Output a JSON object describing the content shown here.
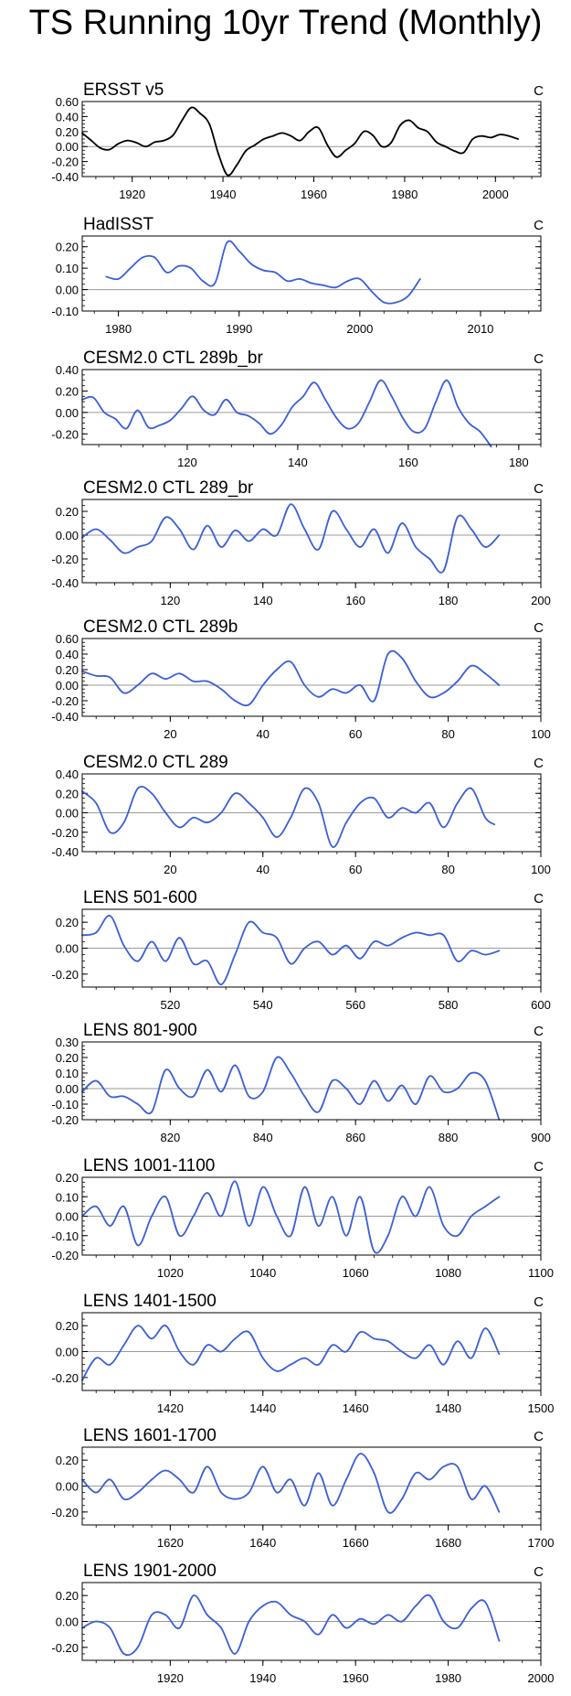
{
  "title": "TS Running 10yr Trend (Monthly)",
  "chart_data": [
    {
      "type": "line",
      "title": "ERSST v5",
      "units": "C",
      "line_color": "#000000",
      "zero_line": true,
      "ylim": [
        -0.4,
        0.6
      ],
      "yticks": [
        "0.60",
        "0.40",
        "0.20",
        "0.00",
        "-0.20",
        "-0.40"
      ],
      "ytick_values": [
        0.6,
        0.4,
        0.2,
        0,
        -0.2,
        -0.4
      ],
      "xlim": [
        1909,
        2010
      ],
      "xticks": [
        1920,
        1940,
        1960,
        1980,
        2000
      ],
      "x": [
        1909,
        1911,
        1913,
        1915,
        1917,
        1919,
        1921,
        1923,
        1925,
        1927,
        1929,
        1931,
        1933,
        1935,
        1937,
        1939,
        1941,
        1943,
        1945,
        1947,
        1949,
        1951,
        1953,
        1955,
        1957,
        1959,
        1961,
        1963,
        1965,
        1967,
        1969,
        1971,
        1973,
        1975,
        1977,
        1979,
        1981,
        1983,
        1985,
        1987,
        1989,
        1991,
        1993,
        1995,
        1997,
        1999,
        2001,
        2003,
        2005
      ],
      "y": [
        0.18,
        0.08,
        -0.02,
        -0.04,
        0.04,
        0.08,
        0.05,
        0.0,
        0.06,
        0.08,
        0.15,
        0.35,
        0.52,
        0.44,
        0.3,
        -0.1,
        -0.38,
        -0.25,
        -0.06,
        0.02,
        0.1,
        0.14,
        0.18,
        0.14,
        0.08,
        0.2,
        0.25,
        0.02,
        -0.14,
        -0.05,
        0.04,
        0.2,
        0.15,
        0.0,
        0.05,
        0.28,
        0.35,
        0.25,
        0.2,
        0.06,
        0.0,
        -0.06,
        -0.08,
        0.1,
        0.14,
        0.12,
        0.16,
        0.14,
        0.1
      ]
    },
    {
      "type": "line",
      "title": "HadISST",
      "units": "C",
      "line_color": "#3b5fd6",
      "zero_line": true,
      "ylim": [
        -0.1,
        0.25
      ],
      "yticks": [
        "0.20",
        "0.10",
        "0.00",
        "-0.10"
      ],
      "ytick_values": [
        0.2,
        0.1,
        0,
        -0.1
      ],
      "xlim": [
        1977,
        2015
      ],
      "xticks": [
        1980,
        1990,
        2000,
        2010
      ],
      "x": [
        1979,
        1980,
        1981,
        1982,
        1983,
        1984,
        1985,
        1986,
        1987,
        1988,
        1989,
        1990,
        1991,
        1992,
        1993,
        1994,
        1995,
        1996,
        1997,
        1998,
        1999,
        2000,
        2001,
        2002,
        2003,
        2004,
        2005
      ],
      "y": [
        0.06,
        0.05,
        0.1,
        0.15,
        0.15,
        0.08,
        0.11,
        0.1,
        0.04,
        0.03,
        0.22,
        0.18,
        0.12,
        0.09,
        0.08,
        0.04,
        0.05,
        0.03,
        0.02,
        0.01,
        0.04,
        0.05,
        -0.01,
        -0.06,
        -0.06,
        -0.03,
        0.05
      ]
    },
    {
      "type": "line",
      "title": "CESM2.0 CTL 289b_br",
      "units": "C",
      "line_color": "#3b5fd6",
      "zero_line": true,
      "ylim": [
        -0.3,
        0.4
      ],
      "yticks": [
        "0.40",
        "0.20",
        "0.00",
        "-0.20"
      ],
      "ytick_values": [
        0.4,
        0.2,
        0,
        -0.2
      ],
      "xlim": [
        101,
        184
      ],
      "xticks": [
        120,
        140,
        160,
        180
      ],
      "x": [
        101,
        103,
        105,
        107,
        109,
        111,
        113,
        115,
        117,
        119,
        121,
        123,
        125,
        127,
        129,
        131,
        133,
        135,
        137,
        139,
        141,
        143,
        145,
        147,
        149,
        151,
        153,
        155,
        157,
        159,
        161,
        163,
        165,
        167,
        169,
        171,
        173,
        175
      ],
      "y": [
        0.12,
        0.14,
        0.0,
        -0.06,
        -0.15,
        0.02,
        -0.14,
        -0.12,
        -0.07,
        0.04,
        0.15,
        0.02,
        -0.02,
        0.12,
        0.0,
        -0.03,
        -0.1,
        -0.2,
        -0.12,
        0.05,
        0.15,
        0.28,
        0.12,
        -0.05,
        -0.15,
        -0.1,
        0.1,
        0.3,
        0.15,
        -0.05,
        -0.18,
        -0.15,
        0.1,
        0.3,
        0.05,
        -0.1,
        -0.18,
        -0.32
      ]
    },
    {
      "type": "line",
      "title": "CESM2.0 CTL 289_br",
      "units": "C",
      "line_color": "#3b5fd6",
      "zero_line": true,
      "ylim": [
        -0.4,
        0.3
      ],
      "yticks": [
        "0.20",
        "0.00",
        "-0.20",
        "-0.40"
      ],
      "ytick_values": [
        0.2,
        0,
        -0.2,
        -0.4
      ],
      "xlim": [
        101,
        200
      ],
      "xticks": [
        120,
        140,
        160,
        180,
        200
      ],
      "x": [
        101,
        104,
        107,
        110,
        113,
        116,
        119,
        122,
        125,
        128,
        131,
        134,
        137,
        140,
        143,
        146,
        149,
        152,
        155,
        158,
        161,
        164,
        167,
        170,
        173,
        176,
        179,
        182,
        185,
        188,
        191
      ],
      "y": [
        -0.02,
        0.05,
        -0.04,
        -0.15,
        -0.1,
        -0.05,
        0.15,
        0.05,
        -0.12,
        0.08,
        -0.1,
        0.04,
        -0.05,
        0.05,
        0.0,
        0.26,
        0.05,
        -0.12,
        0.2,
        0.05,
        -0.1,
        0.05,
        -0.15,
        0.1,
        -0.1,
        -0.2,
        -0.3,
        0.15,
        0.05,
        -0.1,
        0.0
      ]
    },
    {
      "type": "line",
      "title": "CESM2.0 CTL 289b",
      "units": "C",
      "line_color": "#3b5fd6",
      "zero_line": true,
      "ylim": [
        -0.4,
        0.6
      ],
      "yticks": [
        "0.60",
        "0.40",
        "0.20",
        "0.00",
        "-0.20",
        "-0.40"
      ],
      "ytick_values": [
        0.6,
        0.4,
        0.2,
        0,
        -0.2,
        -0.4
      ],
      "xlim": [
        1,
        100
      ],
      "xticks": [
        20,
        40,
        60,
        80,
        100
      ],
      "x": [
        1,
        4,
        7,
        10,
        13,
        16,
        19,
        22,
        25,
        28,
        31,
        34,
        37,
        40,
        43,
        46,
        49,
        52,
        55,
        58,
        61,
        64,
        67,
        70,
        73,
        76,
        79,
        82,
        85,
        88,
        91
      ],
      "y": [
        0.18,
        0.12,
        0.1,
        -0.1,
        0.0,
        0.15,
        0.08,
        0.15,
        0.05,
        0.05,
        -0.05,
        -0.2,
        -0.25,
        0.0,
        0.2,
        0.3,
        0.0,
        -0.15,
        -0.05,
        -0.1,
        0.0,
        -0.2,
        0.4,
        0.35,
        0.05,
        -0.15,
        -0.1,
        0.05,
        0.25,
        0.15,
        0.0
      ]
    },
    {
      "type": "line",
      "title": "CESM2.0 CTL 289",
      "units": "C",
      "line_color": "#3b5fd6",
      "zero_line": true,
      "ylim": [
        -0.4,
        0.4
      ],
      "yticks": [
        "0.40",
        "0.20",
        "0.00",
        "-0.20",
        "-0.40"
      ],
      "ytick_values": [
        0.4,
        0.2,
        0,
        -0.2,
        -0.4
      ],
      "xlim": [
        1,
        100
      ],
      "xticks": [
        20,
        40,
        60,
        80,
        100
      ],
      "x": [
        1,
        4,
        7,
        10,
        13,
        16,
        19,
        22,
        25,
        28,
        31,
        34,
        37,
        40,
        43,
        46,
        49,
        52,
        55,
        58,
        61,
        64,
        67,
        70,
        73,
        76,
        79,
        82,
        85,
        88,
        90
      ],
      "y": [
        0.22,
        0.1,
        -0.2,
        -0.1,
        0.25,
        0.2,
        0.0,
        -0.15,
        -0.05,
        -0.1,
        0.0,
        0.2,
        0.1,
        -0.05,
        -0.25,
        -0.05,
        0.25,
        0.1,
        -0.35,
        -0.1,
        0.1,
        0.15,
        -0.05,
        0.05,
        0.0,
        0.1,
        -0.15,
        0.1,
        0.25,
        -0.05,
        -0.12
      ]
    },
    {
      "type": "line",
      "title": "LENS 501-600",
      "units": "C",
      "line_color": "#3b5fd6",
      "zero_line": true,
      "ylim": [
        -0.3,
        0.3
      ],
      "yticks": [
        "0.20",
        "0.00",
        "-0.20"
      ],
      "ytick_values": [
        0.2,
        0,
        -0.2
      ],
      "xlim": [
        501,
        600
      ],
      "xticks": [
        520,
        540,
        560,
        580,
        600
      ],
      "x": [
        501,
        504,
        507,
        510,
        513,
        516,
        519,
        522,
        525,
        528,
        531,
        534,
        537,
        540,
        543,
        546,
        549,
        552,
        555,
        558,
        561,
        564,
        567,
        570,
        573,
        576,
        579,
        582,
        585,
        588,
        591
      ],
      "y": [
        0.1,
        0.12,
        0.25,
        0.02,
        -0.1,
        0.05,
        -0.1,
        0.08,
        -0.12,
        -0.1,
        -0.28,
        -0.05,
        0.2,
        0.12,
        0.08,
        -0.12,
        0.0,
        0.05,
        -0.05,
        0.02,
        -0.08,
        0.05,
        0.02,
        0.08,
        0.12,
        0.1,
        0.1,
        -0.1,
        -0.02,
        -0.05,
        -0.02
      ]
    },
    {
      "type": "line",
      "title": "LENS 801-900",
      "units": "C",
      "line_color": "#3b5fd6",
      "zero_line": true,
      "ylim": [
        -0.2,
        0.3
      ],
      "yticks": [
        "0.30",
        "0.20",
        "0.10",
        "0.00",
        "-0.10",
        "-0.20"
      ],
      "ytick_values": [
        0.3,
        0.2,
        0.1,
        0,
        -0.1,
        -0.2
      ],
      "xlim": [
        801,
        900
      ],
      "xticks": [
        820,
        840,
        860,
        880,
        900
      ],
      "x": [
        801,
        804,
        807,
        810,
        813,
        816,
        819,
        822,
        825,
        828,
        831,
        834,
        837,
        840,
        843,
        846,
        849,
        852,
        855,
        858,
        861,
        864,
        867,
        870,
        873,
        876,
        879,
        882,
        885,
        888,
        891
      ],
      "y": [
        -0.02,
        0.05,
        -0.05,
        -0.05,
        -0.1,
        -0.15,
        0.12,
        0.0,
        -0.05,
        0.12,
        -0.02,
        0.15,
        -0.05,
        -0.02,
        0.2,
        0.1,
        -0.05,
        -0.15,
        0.05,
        0.0,
        -0.1,
        0.05,
        -0.08,
        0.02,
        -0.1,
        0.08,
        -0.02,
        0.0,
        0.1,
        0.05,
        -0.2
      ]
    },
    {
      "type": "line",
      "title": "LENS 1001-1100",
      "units": "C",
      "line_color": "#3b5fd6",
      "zero_line": true,
      "ylim": [
        -0.2,
        0.2
      ],
      "yticks": [
        "0.20",
        "0.10",
        "0.00",
        "-0.10",
        "-0.20"
      ],
      "ytick_values": [
        0.2,
        0.1,
        0,
        -0.1,
        -0.2
      ],
      "xlim": [
        1001,
        1100
      ],
      "xticks": [
        1020,
        1040,
        1060,
        1080,
        1100
      ],
      "x": [
        1001,
        1004,
        1007,
        1010,
        1013,
        1016,
        1019,
        1022,
        1025,
        1028,
        1031,
        1034,
        1037,
        1040,
        1043,
        1046,
        1049,
        1052,
        1055,
        1058,
        1061,
        1064,
        1067,
        1070,
        1073,
        1076,
        1079,
        1082,
        1085,
        1088,
        1091
      ],
      "y": [
        0.0,
        0.05,
        -0.05,
        0.05,
        -0.15,
        0.0,
        0.1,
        -0.1,
        0.0,
        0.12,
        0.0,
        0.18,
        -0.05,
        0.15,
        0.0,
        -0.1,
        0.15,
        -0.05,
        0.1,
        -0.1,
        0.1,
        -0.18,
        -0.1,
        0.1,
        0.0,
        0.15,
        -0.05,
        -0.1,
        0.0,
        0.05,
        0.1
      ]
    },
    {
      "type": "line",
      "title": "LENS 1401-1500",
      "units": "C",
      "line_color": "#3b5fd6",
      "zero_line": true,
      "ylim": [
        -0.3,
        0.3
      ],
      "yticks": [
        "0.20",
        "0.00",
        "-0.20"
      ],
      "ytick_values": [
        0.2,
        0,
        -0.2
      ],
      "xlim": [
        1401,
        1500
      ],
      "xticks": [
        1420,
        1440,
        1460,
        1480,
        1500
      ],
      "x": [
        1401,
        1404,
        1407,
        1410,
        1413,
        1416,
        1419,
        1422,
        1425,
        1428,
        1431,
        1434,
        1437,
        1440,
        1443,
        1446,
        1449,
        1452,
        1455,
        1458,
        1461,
        1464,
        1467,
        1470,
        1473,
        1476,
        1479,
        1482,
        1485,
        1488,
        1491
      ],
      "y": [
        -0.22,
        -0.05,
        -0.1,
        0.05,
        0.2,
        0.1,
        0.2,
        0.0,
        -0.1,
        0.05,
        0.0,
        0.1,
        0.15,
        -0.05,
        -0.15,
        -0.1,
        -0.05,
        -0.1,
        0.05,
        0.0,
        0.15,
        0.1,
        0.08,
        0.0,
        -0.05,
        0.05,
        -0.1,
        0.08,
        -0.05,
        0.18,
        -0.02
      ]
    },
    {
      "type": "line",
      "title": "LENS 1601-1700",
      "units": "C",
      "line_color": "#3b5fd6",
      "zero_line": true,
      "ylim": [
        -0.3,
        0.3
      ],
      "yticks": [
        "0.20",
        "0.00",
        "-0.20"
      ],
      "ytick_values": [
        0.2,
        0,
        -0.2
      ],
      "xlim": [
        1601,
        1700
      ],
      "xticks": [
        1620,
        1640,
        1660,
        1680,
        1700
      ],
      "x": [
        1601,
        1604,
        1607,
        1610,
        1613,
        1616,
        1619,
        1622,
        1625,
        1628,
        1631,
        1634,
        1637,
        1640,
        1643,
        1646,
        1649,
        1652,
        1655,
        1658,
        1661,
        1664,
        1667,
        1670,
        1673,
        1676,
        1679,
        1682,
        1685,
        1688,
        1691
      ],
      "y": [
        0.05,
        -0.05,
        0.05,
        -0.1,
        -0.05,
        0.05,
        0.12,
        0.05,
        -0.05,
        0.15,
        -0.05,
        -0.1,
        -0.05,
        0.15,
        -0.05,
        0.05,
        -0.15,
        0.1,
        -0.15,
        0.05,
        0.25,
        0.1,
        -0.2,
        -0.1,
        0.1,
        0.05,
        0.15,
        0.15,
        -0.1,
        0.0,
        -0.2
      ]
    },
    {
      "type": "line",
      "title": "LENS 1901-2000",
      "units": "C",
      "line_color": "#3b5fd6",
      "zero_line": true,
      "ylim": [
        -0.3,
        0.3
      ],
      "yticks": [
        "0.20",
        "0.00",
        "-0.20"
      ],
      "ytick_values": [
        0.2,
        0,
        -0.2
      ],
      "xlim": [
        1901,
        2000
      ],
      "xticks": [
        1920,
        1940,
        1960,
        1980,
        2000
      ],
      "x": [
        1901,
        1904,
        1907,
        1910,
        1913,
        1916,
        1919,
        1922,
        1925,
        1928,
        1931,
        1934,
        1937,
        1940,
        1943,
        1946,
        1949,
        1952,
        1955,
        1958,
        1961,
        1964,
        1967,
        1970,
        1973,
        1976,
        1979,
        1982,
        1985,
        1988,
        1991
      ],
      "y": [
        -0.05,
        0.0,
        -0.05,
        -0.25,
        -0.2,
        0.05,
        0.05,
        -0.05,
        0.2,
        0.05,
        -0.05,
        -0.25,
        0.0,
        0.12,
        0.15,
        0.05,
        0.0,
        -0.1,
        0.05,
        -0.05,
        0.02,
        -0.02,
        0.05,
        0.0,
        0.12,
        0.2,
        0.0,
        -0.05,
        0.1,
        0.15,
        -0.15
      ]
    }
  ]
}
